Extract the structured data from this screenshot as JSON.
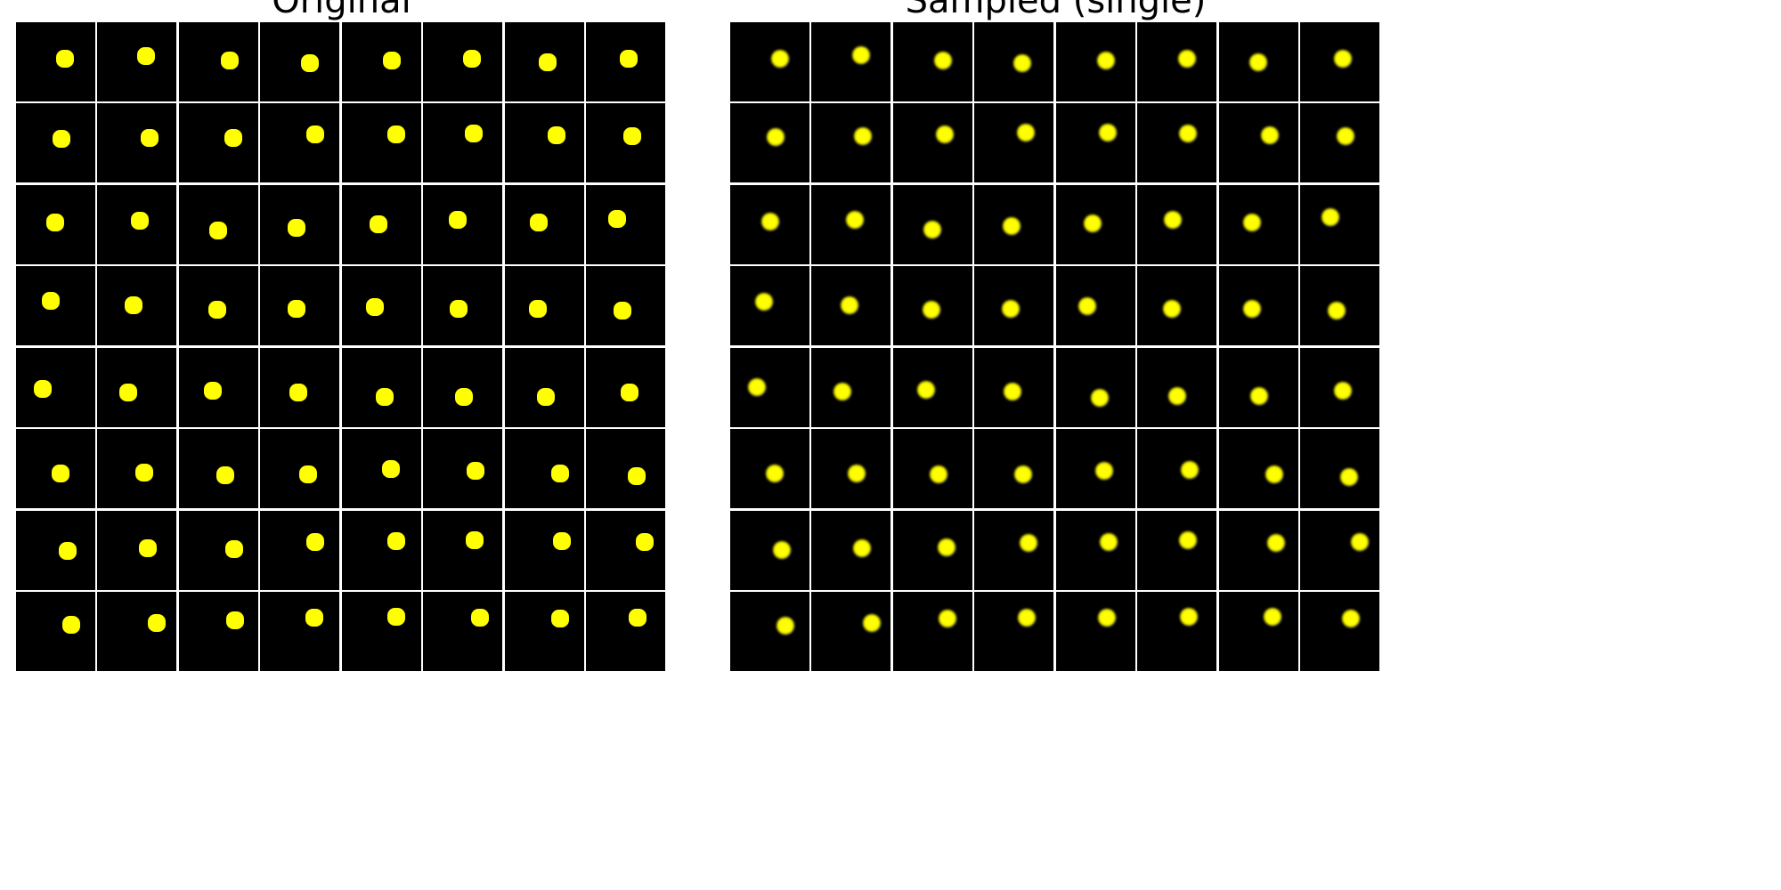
{
  "titles": {
    "original": "Original",
    "sampled": "Sampled (single)"
  },
  "colors": {
    "background": "#000000",
    "ball": "#ffff00",
    "grid_lines": "#ffffff"
  },
  "grid": {
    "rows": 8,
    "cols": 8
  }
}
